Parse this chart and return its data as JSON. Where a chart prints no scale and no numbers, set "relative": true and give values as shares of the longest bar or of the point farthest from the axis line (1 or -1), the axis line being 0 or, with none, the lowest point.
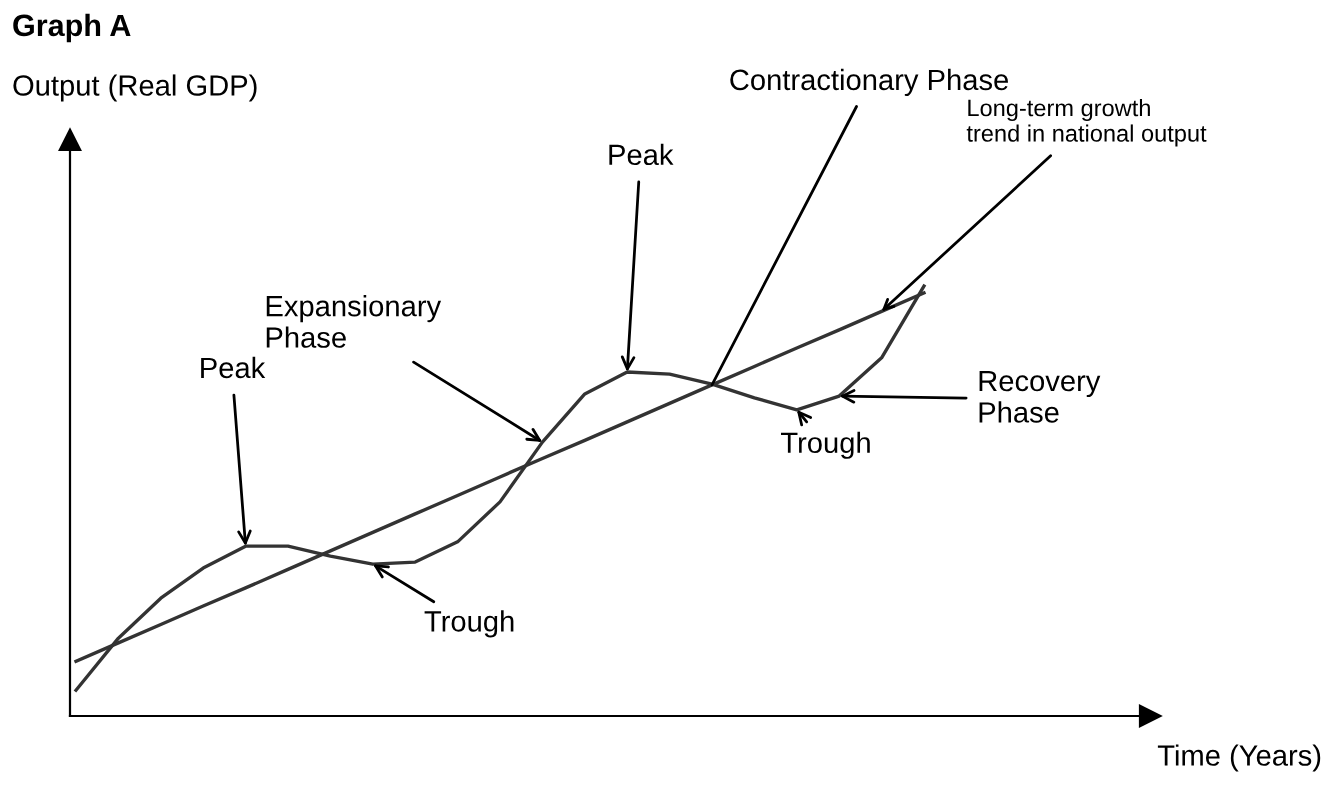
{
  "chart_data": {
    "type": "line",
    "title": "Graph A",
    "relative": true,
    "tick_labels": false,
    "marker": "none",
    "line_style": "solid",
    "categories": [
      null,
      null,
      null,
      null,
      null,
      null,
      null,
      null,
      null,
      null,
      null,
      null,
      null,
      null,
      null,
      null,
      null,
      null,
      null,
      null,
      null
    ],
    "series": [
      {
        "color": "#333333",
        "values": [
          0.06,
          0.181,
          0.274,
          0.344,
          0.395,
          0.395,
          0.372,
          0.353,
          0.358,
          0.405,
          0.498,
          0.637,
          0.749,
          0.8,
          0.795,
          0.772,
          0.74,
          0.712,
          0.744,
          0.833,
          1.0
        ]
      },
      {
        "color": "#333333",
        "values": [
          0.127,
          0.17,
          0.213,
          0.256,
          0.298,
          0.341,
          0.384,
          0.427,
          0.47,
          0.513,
          0.556,
          0.599,
          0.641,
          0.684,
          0.727,
          0.77,
          0.813,
          0.856,
          0.898,
          0.941,
          0.984
        ]
      }
    ],
    "annotations": [
      "Peak",
      "Trough",
      "Expansionary\nPhase",
      "Peak",
      "Contractionary Phase",
      "Long-term growth\ntrend in national output",
      "Trough",
      "Recovery\nPhase",
      "Output (Real GDP)",
      "Time (Years)"
    ]
  }
}
